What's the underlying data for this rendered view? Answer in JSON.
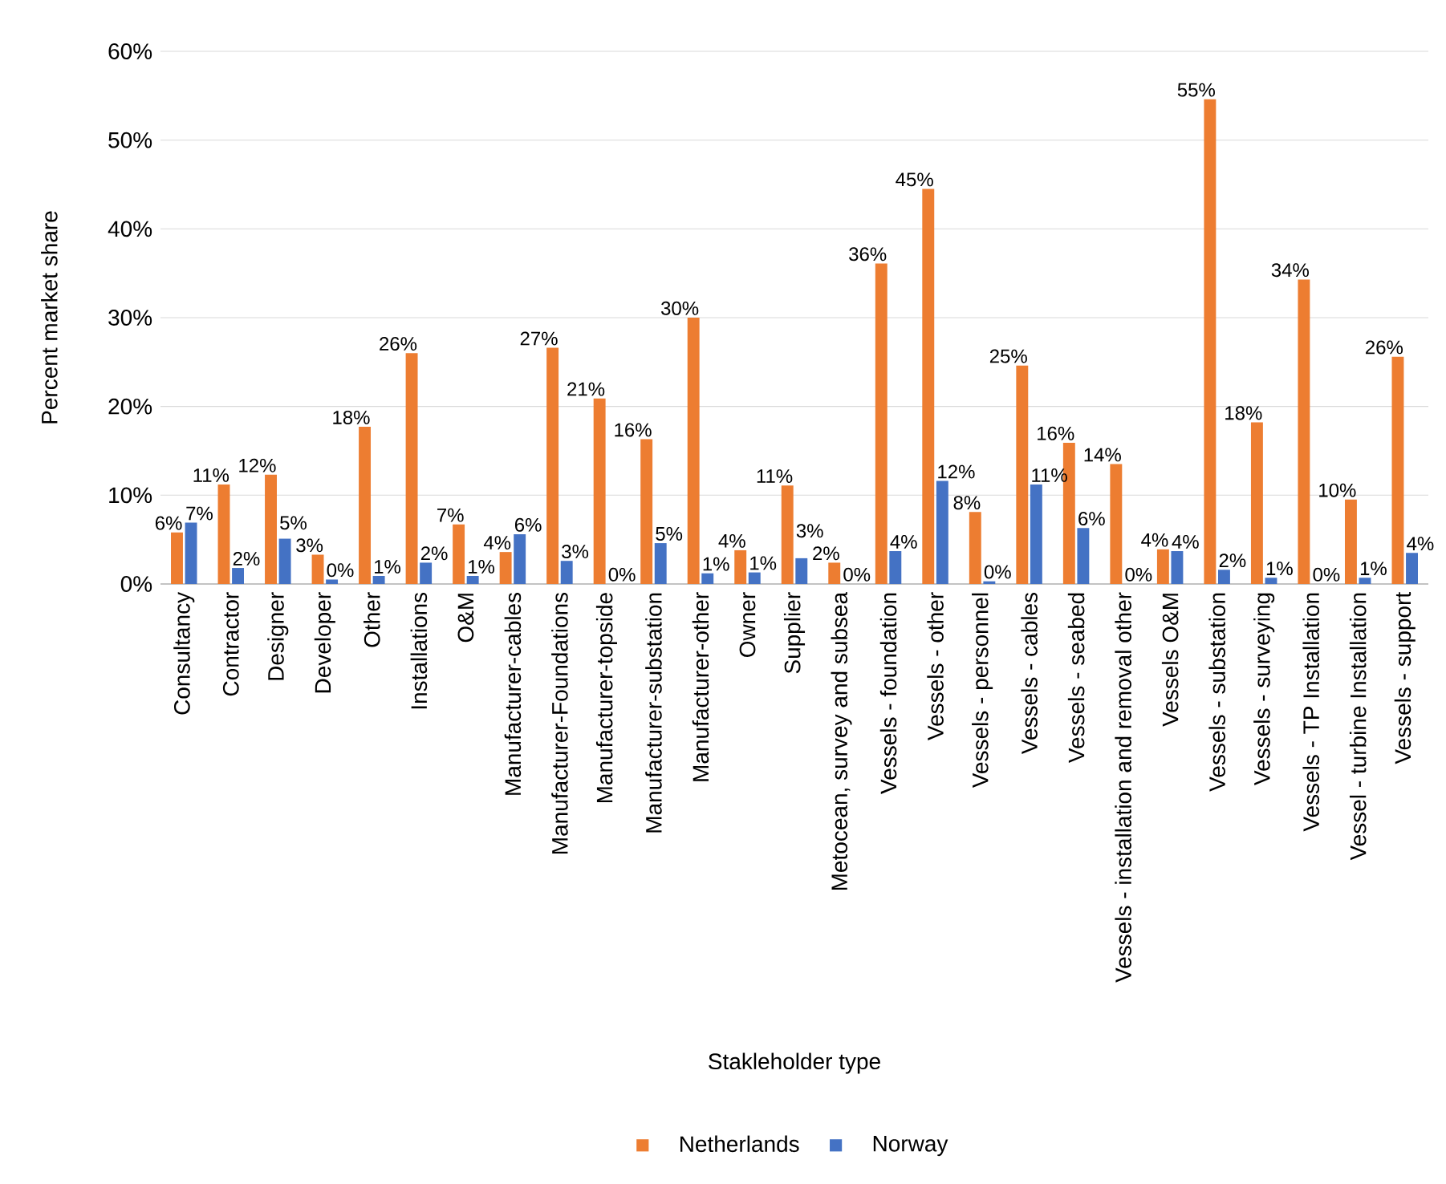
{
  "chart_data": {
    "type": "bar",
    "xlabel": "Stakleholder type",
    "ylabel": "Percent market share",
    "categories": [
      "Consultancy",
      "Contractor",
      "Designer",
      "Developer",
      "Other",
      "Installations",
      "O&M",
      "Manufacturer-cables",
      "Manufacturer-Foundations",
      "Manufacturer-topside",
      "Manufacturer-substation",
      "Manufacturer-other",
      "Owner",
      "Supplier",
      "Metocean, survey and subsea",
      "Vessels - foundation",
      "Vessels - other",
      "Vessels - personnel",
      "Vessels - cables",
      "Vessels - seabed",
      "Vessels - installation and removal other",
      "Vessels O&M",
      "Vessels - substation",
      "Vessels - surveying",
      "Vessels - TP Installation",
      "Vessel - turbine Installation",
      "Vessels - support"
    ],
    "series": [
      {
        "name": "Netherlands",
        "color": "#ed7d31",
        "values": [
          5.8,
          11.2,
          12.3,
          3.3,
          17.7,
          26.0,
          6.7,
          3.6,
          26.6,
          20.9,
          16.3,
          30.0,
          3.8,
          11.1,
          2.4,
          36.1,
          44.5,
          8.1,
          24.6,
          15.9,
          13.5,
          3.9,
          54.6,
          18.2,
          34.3,
          9.5,
          25.6
        ],
        "value_labels": [
          "6%",
          "11%",
          "12%",
          "3%",
          "18%",
          "26%",
          "7%",
          "4%",
          "27%",
          "21%",
          "16%",
          "30%",
          "4%",
          "11%",
          "2%",
          "36%",
          "45%",
          "8%",
          "25%",
          "16%",
          "14%",
          "4%",
          "55%",
          "18%",
          "34%",
          "10%",
          "26%"
        ]
      },
      {
        "name": "Norway",
        "color": "#4472c4",
        "values": [
          6.9,
          1.8,
          5.1,
          0.5,
          0.9,
          2.4,
          0.9,
          5.6,
          2.6,
          0,
          4.6,
          1.2,
          1.3,
          2.9,
          0,
          3.7,
          11.6,
          0.3,
          11.2,
          6.3,
          0,
          3.7,
          1.6,
          0.7,
          0,
          0.7,
          3.5
        ],
        "value_labels": [
          "7%",
          "2%",
          "5%",
          "0%",
          "1%",
          "2%",
          "1%",
          "6%",
          "3%",
          "0%",
          "5%",
          "1%",
          "1%",
          "3%",
          "0%",
          "4%",
          "12%",
          "0%",
          "11%",
          "6%",
          "0%",
          "4%",
          "2%",
          "1%",
          "0%",
          "1%",
          "4%"
        ]
      }
    ],
    "ylim": [
      0,
      60
    ],
    "yticks": [
      {
        "value": 0,
        "label": "0%"
      },
      {
        "value": 10,
        "label": "10%"
      },
      {
        "value": 20,
        "label": "20%"
      },
      {
        "value": 30,
        "label": "30%"
      },
      {
        "value": 40,
        "label": "40%"
      },
      {
        "value": 50,
        "label": "50%"
      },
      {
        "value": 60,
        "label": "60%"
      }
    ],
    "grid": "y",
    "legend": "bottom"
  }
}
